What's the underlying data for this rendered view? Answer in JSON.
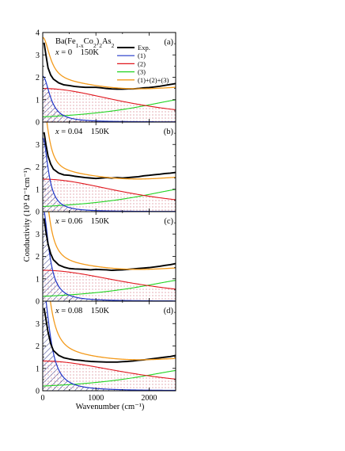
{
  "compound_label": "Ba(Fe1-xCo2)2As2",
  "colors": {
    "exp": "#000000",
    "c1": "#1f35c8",
    "c2": "#e0161d",
    "c3": "#22d422",
    "sum": "#f39a1b",
    "hatch": "#1a1f7a",
    "dots": "#c13a4a"
  },
  "chart_data": {
    "type": "line",
    "xlabel": "Wavenumber (cm⁻¹)",
    "ylabel": "Conductivity (10³ Ω⁻¹cm⁻¹)",
    "xlim": [
      0,
      2500
    ],
    "ylim": [
      0,
      4
    ],
    "xticks": [
      "0",
      "1000",
      "2000"
    ],
    "yticks": [
      "0",
      "1",
      "2",
      "3",
      "4"
    ],
    "legend": {
      "placement": "top-right (panel a)",
      "entries": [
        "Exp.",
        "(1)",
        "(2)",
        "(3)",
        "(1)+(2)+(3)"
      ]
    },
    "panels": [
      {
        "label": "(a)",
        "doping": "x = 0",
        "temperature": "150K",
        "drude_amp": 2.05,
        "drude_width": 160,
        "lor2_amp": 1.5,
        "lor2_width": 1900,
        "lor3_amp": 1.12,
        "lor3_center": 3050,
        "lor3_width": 1550,
        "exp_points": [
          [
            25,
            3.55
          ],
          [
            60,
            3.0
          ],
          [
            100,
            2.42
          ],
          [
            150,
            2.1
          ],
          [
            200,
            1.92
          ],
          [
            300,
            1.75
          ],
          [
            400,
            1.66
          ],
          [
            500,
            1.63
          ],
          [
            600,
            1.59
          ],
          [
            700,
            1.57
          ],
          [
            800,
            1.55
          ],
          [
            900,
            1.55
          ],
          [
            1000,
            1.55
          ],
          [
            1100,
            1.53
          ],
          [
            1200,
            1.5
          ],
          [
            1300,
            1.48
          ],
          [
            1400,
            1.47
          ],
          [
            1500,
            1.47
          ],
          [
            1600,
            1.48
          ],
          [
            1700,
            1.48
          ],
          [
            1800,
            1.5
          ],
          [
            1900,
            1.53
          ],
          [
            2000,
            1.54
          ],
          [
            2100,
            1.57
          ],
          [
            2200,
            1.6
          ],
          [
            2300,
            1.64
          ],
          [
            2400,
            1.68
          ],
          [
            2500,
            1.72
          ]
        ]
      },
      {
        "label": "(b)",
        "doping": "x = 0.04",
        "temperature": "150K",
        "drude_amp": 3.3,
        "drude_width": 120,
        "lor2_amp": 1.45,
        "lor2_width": 1900,
        "lor3_amp": 1.12,
        "lor3_center": 3050,
        "lor3_width": 1550,
        "exp_points": [
          [
            25,
            3.55
          ],
          [
            60,
            3.0
          ],
          [
            100,
            2.48
          ],
          [
            150,
            2.12
          ],
          [
            200,
            1.9
          ],
          [
            300,
            1.72
          ],
          [
            400,
            1.64
          ],
          [
            500,
            1.62
          ],
          [
            600,
            1.58
          ],
          [
            700,
            1.55
          ],
          [
            800,
            1.52
          ],
          [
            900,
            1.5
          ],
          [
            1000,
            1.48
          ],
          [
            1100,
            1.5
          ],
          [
            1200,
            1.52
          ],
          [
            1300,
            1.5
          ],
          [
            1400,
            1.52
          ],
          [
            1500,
            1.5
          ],
          [
            1600,
            1.52
          ],
          [
            1700,
            1.54
          ],
          [
            1800,
            1.56
          ],
          [
            1900,
            1.6
          ],
          [
            2000,
            1.62
          ],
          [
            2100,
            1.65
          ],
          [
            2200,
            1.67
          ],
          [
            2300,
            1.7
          ],
          [
            2400,
            1.72
          ],
          [
            2500,
            1.75
          ]
        ]
      },
      {
        "label": "(c)",
        "doping": "x = 0.06",
        "temperature": "150K",
        "drude_amp": 4.2,
        "drude_width": 130,
        "lor2_amp": 1.38,
        "lor2_width": 2000,
        "lor3_amp": 1.05,
        "lor3_center": 3050,
        "lor3_width": 1550,
        "exp_points": [
          [
            25,
            3.7
          ],
          [
            60,
            3.1
          ],
          [
            100,
            2.55
          ],
          [
            150,
            2.12
          ],
          [
            200,
            1.85
          ],
          [
            300,
            1.62
          ],
          [
            400,
            1.52
          ],
          [
            500,
            1.46
          ],
          [
            600,
            1.44
          ],
          [
            700,
            1.43
          ],
          [
            800,
            1.42
          ],
          [
            900,
            1.4
          ],
          [
            1000,
            1.42
          ],
          [
            1100,
            1.41
          ],
          [
            1200,
            1.4
          ],
          [
            1300,
            1.38
          ],
          [
            1400,
            1.39
          ],
          [
            1500,
            1.4
          ],
          [
            1600,
            1.42
          ],
          [
            1700,
            1.44
          ],
          [
            1800,
            1.46
          ],
          [
            1900,
            1.48
          ],
          [
            2000,
            1.5
          ],
          [
            2100,
            1.53
          ],
          [
            2200,
            1.56
          ],
          [
            2300,
            1.6
          ],
          [
            2400,
            1.63
          ],
          [
            2500,
            1.68
          ]
        ]
      },
      {
        "label": "(d)",
        "doping": "x = 0.08",
        "temperature": "150K",
        "drude_amp": 4.7,
        "drude_width": 150,
        "lor2_amp": 1.33,
        "lor2_width": 2000,
        "lor3_amp": 1.02,
        "lor3_center": 3050,
        "lor3_width": 1550,
        "exp_points": [
          [
            25,
            3.7
          ],
          [
            60,
            3.2
          ],
          [
            100,
            2.62
          ],
          [
            150,
            2.1
          ],
          [
            200,
            1.8
          ],
          [
            300,
            1.58
          ],
          [
            400,
            1.47
          ],
          [
            500,
            1.42
          ],
          [
            600,
            1.38
          ],
          [
            700,
            1.36
          ],
          [
            800,
            1.33
          ],
          [
            900,
            1.31
          ],
          [
            1000,
            1.3
          ],
          [
            1100,
            1.29
          ],
          [
            1200,
            1.28
          ],
          [
            1300,
            1.28
          ],
          [
            1400,
            1.28
          ],
          [
            1500,
            1.3
          ],
          [
            1600,
            1.31
          ],
          [
            1700,
            1.33
          ],
          [
            1800,
            1.36
          ],
          [
            1900,
            1.38
          ],
          [
            2000,
            1.41
          ],
          [
            2100,
            1.44
          ],
          [
            2200,
            1.47
          ],
          [
            2300,
            1.5
          ],
          [
            2400,
            1.53
          ],
          [
            2500,
            1.58
          ]
        ]
      }
    ]
  }
}
